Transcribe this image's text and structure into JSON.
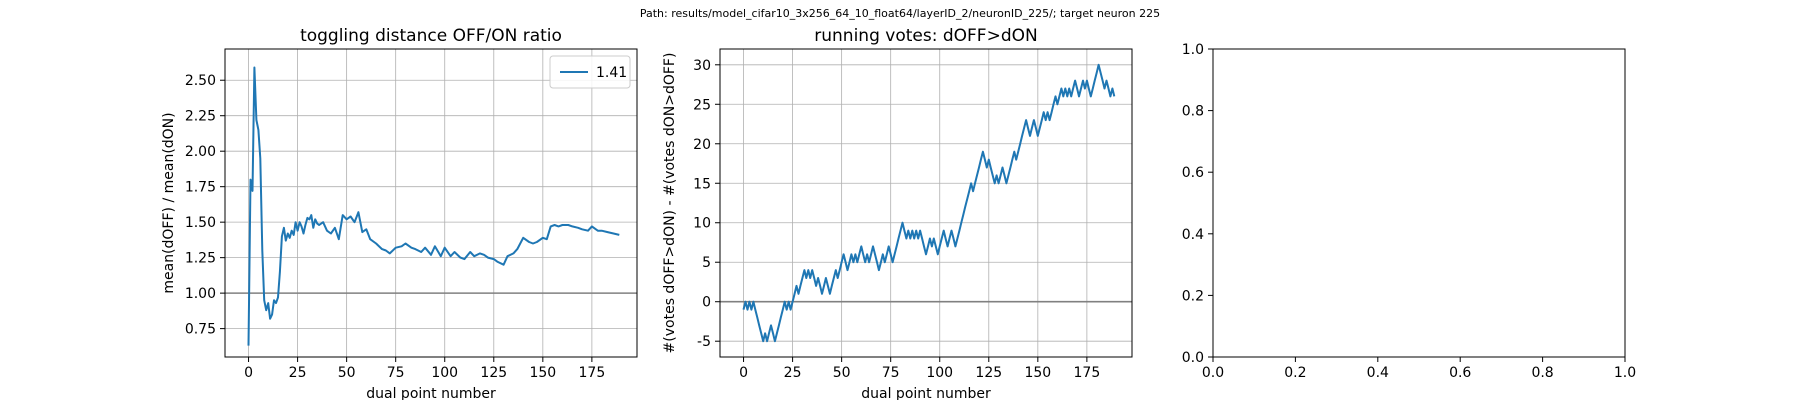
{
  "figure": {
    "suptitle": "Path: results/model_cifar10_3x256_64_10_float64/layerID_2/neuronID_225/; target neuron 225"
  },
  "chart_data": [
    {
      "type": "line",
      "title": "toggling distance OFF/ON ratio",
      "xlabel": "dual point number",
      "ylabel": "mean(dOFF) / mean(dON)",
      "xlim": [
        -12,
        198
      ],
      "ylim": [
        0.55,
        2.72
      ],
      "xticks": [
        0,
        25,
        50,
        75,
        100,
        125,
        150,
        175
      ],
      "yticks": [
        0.75,
        1.0,
        1.25,
        1.5,
        1.75,
        2.0,
        2.25,
        2.5
      ],
      "ytick_labels": [
        "0.75",
        "1.00",
        "1.25",
        "1.50",
        "1.75",
        "2.00",
        "2.25",
        "2.50"
      ],
      "grid": true,
      "legend": "upper right",
      "hlines": [
        1.0
      ],
      "series": [
        {
          "name": "1.41",
          "color": "#1f77b4",
          "x": [
            0,
            1,
            2,
            3,
            4,
            5,
            6,
            7,
            8,
            9,
            10,
            11,
            12,
            13,
            14,
            15,
            16,
            17,
            18,
            19,
            20,
            21,
            22,
            23,
            24,
            25,
            26,
            27,
            28,
            29,
            30,
            31,
            32,
            33,
            34,
            35,
            36,
            38,
            40,
            42,
            44,
            46,
            48,
            50,
            52,
            54,
            56,
            58,
            60,
            62,
            65,
            68,
            70,
            72,
            75,
            78,
            80,
            83,
            85,
            88,
            90,
            93,
            95,
            98,
            100,
            103,
            105,
            108,
            110,
            113,
            115,
            118,
            120,
            122,
            125,
            127,
            130,
            132,
            135,
            137,
            140,
            143,
            145,
            147,
            150,
            152,
            154,
            156,
            158,
            160,
            163,
            165,
            168,
            170,
            173,
            175,
            178,
            180,
            183,
            186,
            189
          ],
          "y": [
            0.63,
            1.8,
            1.72,
            2.59,
            2.22,
            2.15,
            1.95,
            1.3,
            0.95,
            0.88,
            0.93,
            0.82,
            0.85,
            0.95,
            0.93,
            0.97,
            1.15,
            1.4,
            1.46,
            1.37,
            1.42,
            1.39,
            1.44,
            1.41,
            1.5,
            1.44,
            1.5,
            1.47,
            1.42,
            1.48,
            1.53,
            1.52,
            1.55,
            1.46,
            1.52,
            1.49,
            1.48,
            1.5,
            1.44,
            1.42,
            1.46,
            1.38,
            1.55,
            1.52,
            1.54,
            1.5,
            1.57,
            1.43,
            1.45,
            1.38,
            1.35,
            1.31,
            1.3,
            1.28,
            1.32,
            1.33,
            1.35,
            1.32,
            1.31,
            1.29,
            1.32,
            1.27,
            1.33,
            1.26,
            1.32,
            1.26,
            1.29,
            1.25,
            1.24,
            1.29,
            1.26,
            1.28,
            1.27,
            1.25,
            1.24,
            1.22,
            1.2,
            1.26,
            1.28,
            1.31,
            1.39,
            1.36,
            1.35,
            1.36,
            1.39,
            1.38,
            1.47,
            1.48,
            1.47,
            1.48,
            1.48,
            1.47,
            1.46,
            1.45,
            1.44,
            1.47,
            1.44,
            1.44,
            1.43,
            1.42,
            1.41
          ]
        }
      ]
    },
    {
      "type": "line",
      "title": "running votes: dOFF>dON",
      "xlabel": "dual point number",
      "ylabel": "#(votes dOFF>dON) - #(votes dON>dOFF)",
      "xlim": [
        -12,
        198
      ],
      "ylim": [
        -7,
        32
      ],
      "xticks": [
        0,
        25,
        50,
        75,
        100,
        125,
        150,
        175
      ],
      "yticks": [
        -5,
        0,
        5,
        10,
        15,
        20,
        25,
        30
      ],
      "grid": true,
      "hlines": [
        0
      ],
      "series": [
        {
          "color": "#1f77b4",
          "x": [
            0,
            1,
            2,
            3,
            4,
            5,
            6,
            7,
            8,
            9,
            10,
            11,
            12,
            13,
            14,
            15,
            16,
            17,
            18,
            19,
            20,
            21,
            22,
            23,
            24,
            25,
            26,
            27,
            28,
            29,
            30,
            31,
            32,
            33,
            34,
            35,
            36,
            37,
            38,
            39,
            40,
            41,
            42,
            43,
            44,
            45,
            46,
            47,
            48,
            49,
            50,
            51,
            52,
            53,
            54,
            55,
            56,
            57,
            58,
            59,
            60,
            61,
            62,
            63,
            64,
            65,
            66,
            67,
            68,
            69,
            70,
            71,
            72,
            73,
            74,
            75,
            76,
            77,
            78,
            79,
            80,
            81,
            82,
            83,
            84,
            85,
            86,
            87,
            88,
            89,
            90,
            91,
            92,
            93,
            94,
            95,
            96,
            97,
            98,
            99,
            100,
            101,
            102,
            103,
            104,
            105,
            106,
            107,
            108,
            109,
            110,
            111,
            112,
            113,
            114,
            115,
            116,
            117,
            118,
            119,
            120,
            121,
            122,
            123,
            124,
            125,
            126,
            127,
            128,
            129,
            130,
            131,
            132,
            133,
            134,
            135,
            136,
            137,
            138,
            139,
            140,
            141,
            142,
            143,
            144,
            145,
            146,
            147,
            148,
            149,
            150,
            151,
            152,
            153,
            154,
            155,
            156,
            157,
            158,
            159,
            160,
            161,
            162,
            163,
            164,
            165,
            166,
            167,
            168,
            169,
            170,
            171,
            172,
            173,
            174,
            175,
            176,
            177,
            178,
            179,
            180,
            181,
            182,
            183,
            184,
            185,
            186,
            187,
            188,
            189
          ],
          "y": [
            -1,
            0,
            -1,
            0,
            -1,
            0,
            -1,
            -2,
            -3,
            -4,
            -5,
            -4,
            -5,
            -4,
            -3,
            -4,
            -5,
            -4,
            -3,
            -2,
            -1,
            0,
            -1,
            0,
            -1,
            0,
            1,
            2,
            1,
            2,
            3,
            4,
            3,
            4,
            3,
            4,
            3,
            2,
            3,
            2,
            1,
            2,
            3,
            2,
            1,
            2,
            3,
            4,
            3,
            4,
            5,
            6,
            5,
            4,
            5,
            6,
            5,
            6,
            5,
            6,
            7,
            6,
            5,
            6,
            5,
            6,
            7,
            6,
            5,
            4,
            5,
            6,
            5,
            6,
            7,
            6,
            5,
            6,
            7,
            8,
            9,
            10,
            9,
            8,
            9,
            8,
            9,
            8,
            9,
            8,
            9,
            8,
            7,
            6,
            7,
            8,
            7,
            8,
            7,
            6,
            7,
            8,
            9,
            8,
            7,
            8,
            9,
            8,
            7,
            8,
            9,
            10,
            11,
            12,
            13,
            14,
            15,
            14,
            15,
            16,
            17,
            18,
            19,
            18,
            17,
            18,
            17,
            16,
            15,
            16,
            15,
            16,
            17,
            16,
            15,
            16,
            17,
            18,
            19,
            18,
            19,
            20,
            21,
            22,
            23,
            22,
            21,
            22,
            23,
            22,
            21,
            22,
            23,
            24,
            23,
            24,
            23,
            24,
            25,
            26,
            25,
            26,
            27,
            26,
            27,
            26,
            27,
            26,
            27,
            28,
            27,
            26,
            27,
            28,
            27,
            28,
            27,
            26,
            27,
            28,
            29,
            30,
            29,
            28,
            27,
            28,
            27,
            26,
            27,
            26
          ]
        }
      ]
    },
    {
      "type": "line",
      "title": "",
      "xlabel": "",
      "ylabel": "",
      "xlim": [
        0,
        1
      ],
      "ylim": [
        0,
        1
      ],
      "xticks": [
        0,
        0.2,
        0.4,
        0.6,
        0.8,
        1.0
      ],
      "yticks": [
        0,
        0.2,
        0.4,
        0.6,
        0.8,
        1.0
      ],
      "xtick_labels": [
        "0.0",
        "0.2",
        "0.4",
        "0.6",
        "0.8",
        "1.0"
      ],
      "ytick_labels": [
        "0.0",
        "0.2",
        "0.4",
        "0.6",
        "0.8",
        "1.0"
      ],
      "grid": false,
      "series": []
    }
  ]
}
